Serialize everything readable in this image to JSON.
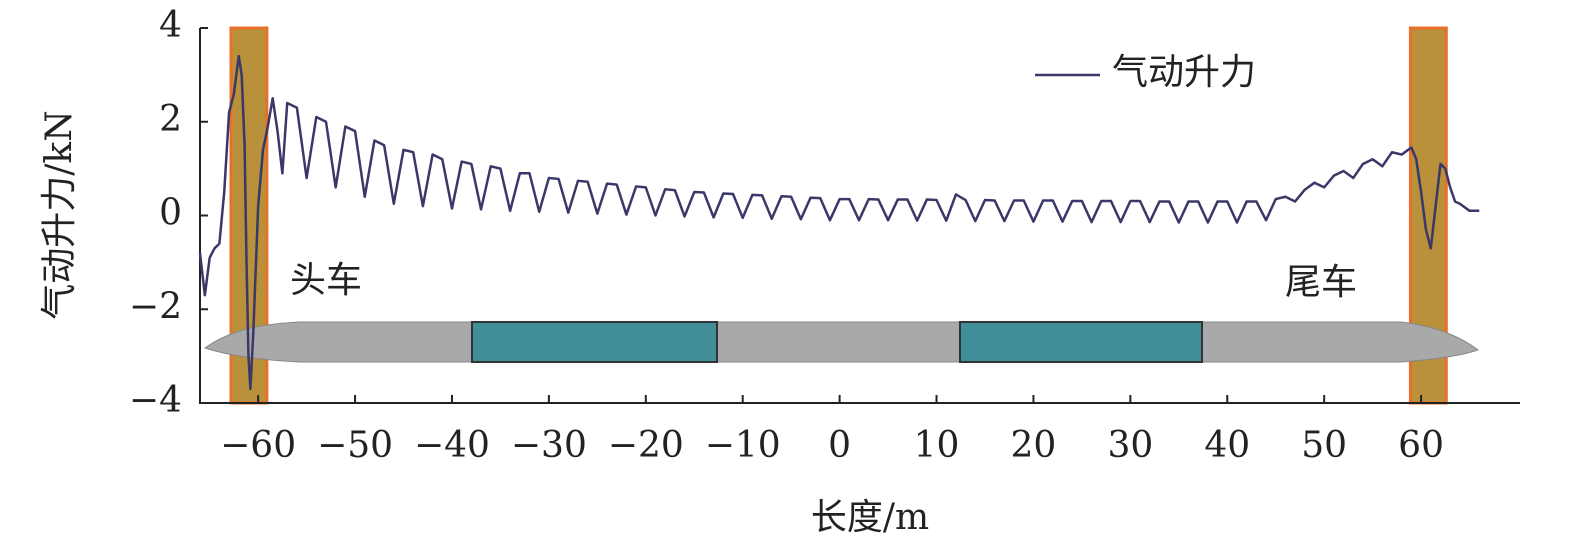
{
  "chart_data": {
    "type": "line",
    "xlabel": "长度/m",
    "ylabel": "气动升力/kN",
    "xlim": [
      -66,
      70
    ],
    "ylim": [
      -4,
      4
    ],
    "xticks": [
      {
        "value": -60,
        "label": "−60"
      },
      {
        "value": -50,
        "label": "−50"
      },
      {
        "value": -40,
        "label": "−40"
      },
      {
        "value": -30,
        "label": "−30"
      },
      {
        "value": -20,
        "label": "−20"
      },
      {
        "value": -10,
        "label": "−10"
      },
      0,
      10,
      20,
      30,
      40,
      50,
      60
    ],
    "yticks": [
      {
        "value": -4,
        "label": "−4"
      },
      {
        "value": -2,
        "label": "−2"
      },
      0,
      2,
      4
    ],
    "grid": false,
    "legend": "upper right",
    "bands": [
      [
        -62.8,
        -59.1
      ],
      [
        58.9,
        62.6
      ]
    ],
    "band_color": "#b8913a",
    "band_edge_color": "#e8702a",
    "annotations": [
      "头车",
      "尾车"
    ],
    "x": [
      -66,
      -65.5,
      -65,
      -64.5,
      -64,
      -63.5,
      -63,
      -62.5,
      -62,
      -61.7,
      -61.4,
      -61.2,
      -61,
      -60.8,
      -60.5,
      -60,
      -59.5,
      -59,
      -58.5,
      -58,
      -57.5,
      -57,
      -56,
      -55,
      -54,
      -53,
      -52,
      -51,
      -50,
      -49,
      -48,
      -47,
      -46,
      -45,
      -44,
      -43,
      -42,
      -41,
      -40,
      -39,
      -38,
      -37,
      -36,
      -35,
      -34,
      -33,
      -32,
      -31,
      -30,
      -29,
      -28,
      -27,
      -26,
      -25,
      -24,
      -23,
      -22,
      -21,
      -20,
      -19,
      -18,
      -17,
      -16,
      -15,
      -14,
      -13,
      -12,
      -11,
      -10,
      -9,
      -8,
      -7,
      -6,
      -5,
      -4,
      -3,
      -2,
      -1,
      0,
      1,
      2,
      3,
      4,
      5,
      6,
      7,
      8,
      9,
      10,
      11,
      12,
      13,
      14,
      15,
      16,
      17,
      18,
      19,
      20,
      21,
      22,
      23,
      24,
      25,
      26,
      27,
      28,
      29,
      30,
      31,
      32,
      33,
      34,
      35,
      36,
      37,
      38,
      39,
      40,
      41,
      42,
      43,
      44,
      45,
      46,
      47,
      48,
      49,
      50,
      51,
      52,
      53,
      54,
      55,
      56,
      57,
      58,
      59,
      59.5,
      60,
      60.5,
      61,
      61.5,
      62,
      62.5,
      63,
      63.5,
      64,
      65,
      66
    ],
    "series": [
      {
        "name": "气动升力",
        "color": "#3a3868",
        "values": [
          -0.8,
          -1.7,
          -0.9,
          -0.7,
          -0.6,
          0.5,
          2.2,
          2.6,
          3.4,
          3.0,
          1.5,
          -1.0,
          -3.0,
          -3.7,
          -2.5,
          0.2,
          1.4,
          1.9,
          2.5,
          1.8,
          0.9,
          2.4,
          2.3,
          0.8,
          2.1,
          2.0,
          0.6,
          1.9,
          1.8,
          0.4,
          1.6,
          1.5,
          0.25,
          1.4,
          1.35,
          0.2,
          1.3,
          1.2,
          0.15,
          1.15,
          1.1,
          0.13,
          1.05,
          1.0,
          0.1,
          0.9,
          0.9,
          0.08,
          0.8,
          0.78,
          0.06,
          0.74,
          0.72,
          0.04,
          0.68,
          0.66,
          0.02,
          0.62,
          0.6,
          0,
          0.56,
          0.54,
          -0.02,
          0.5,
          0.49,
          -0.04,
          0.47,
          0.46,
          -0.05,
          0.44,
          0.43,
          -0.07,
          0.41,
          0.4,
          -0.08,
          0.38,
          0.37,
          -0.1,
          0.35,
          0.35,
          -0.1,
          0.35,
          0.34,
          -0.1,
          0.34,
          0.34,
          -0.11,
          0.34,
          0.33,
          -0.11,
          0.45,
          0.33,
          -0.12,
          0.33,
          0.32,
          -0.12,
          0.32,
          0.32,
          -0.13,
          0.32,
          0.32,
          -0.13,
          0.31,
          0.31,
          -0.14,
          0.31,
          0.31,
          -0.14,
          0.31,
          0.31,
          -0.14,
          0.3,
          0.3,
          -0.15,
          0.3,
          0.3,
          -0.15,
          0.3,
          0.3,
          -0.15,
          0.3,
          0.3,
          -0.1,
          0.35,
          0.4,
          0.3,
          0.55,
          0.7,
          0.6,
          0.85,
          0.95,
          0.8,
          1.1,
          1.2,
          1.05,
          1.35,
          1.3,
          1.45,
          1.2,
          0.5,
          -0.3,
          -0.7,
          0.2,
          1.1,
          1.0,
          0.6,
          0.3,
          0.25,
          0.1,
          0.1
        ]
      }
    ]
  }
}
